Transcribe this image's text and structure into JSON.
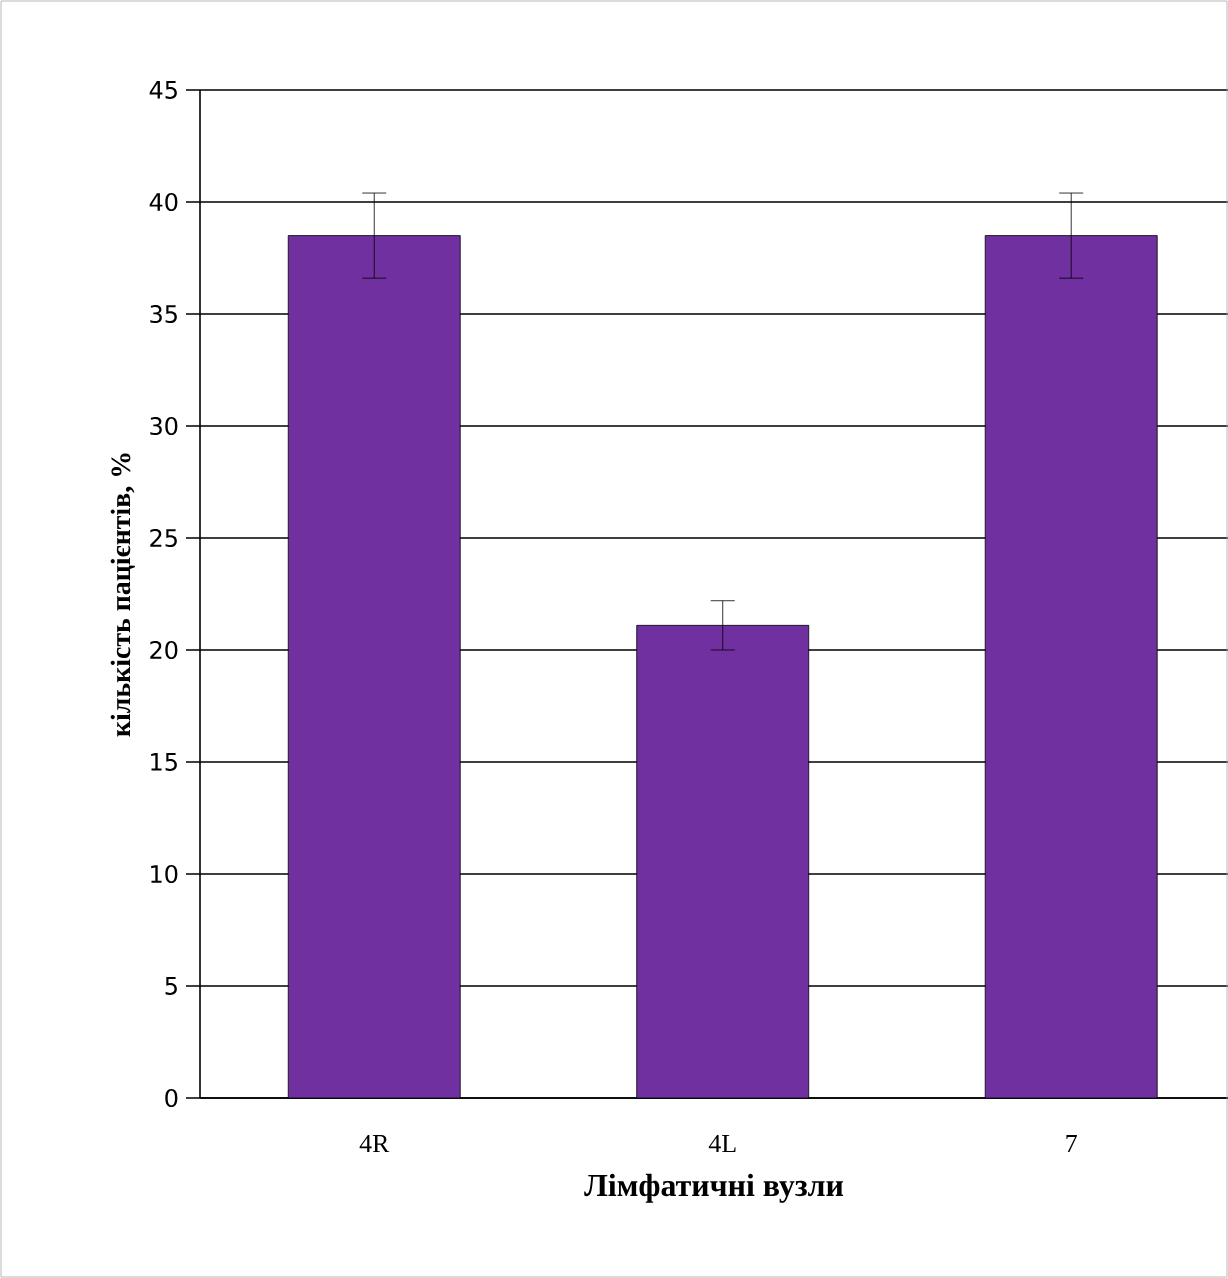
{
  "chart_data": {
    "type": "bar",
    "xlabel": "Лімфатичні вузли",
    "ylabel": "кількість пацієнтів, %",
    "categories": [
      "4R",
      "4L",
      "7"
    ],
    "values": [
      38.5,
      21.1,
      38.5
    ],
    "errors": [
      1.9,
      1.1,
      1.9
    ],
    "color": "#7030a0",
    "ylim": [
      0,
      45
    ],
    "yticks": [
      0,
      5,
      10,
      15,
      20,
      25,
      30,
      35,
      40,
      45
    ],
    "grid": "y"
  }
}
